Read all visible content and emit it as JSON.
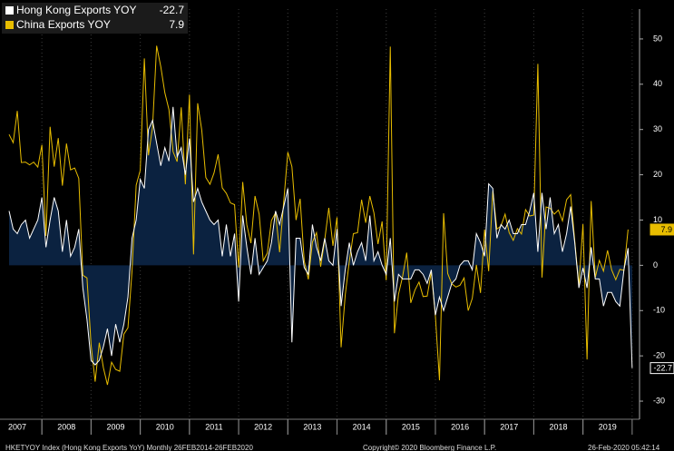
{
  "chart_data": {
    "type": "line",
    "x": [
      2007.333,
      2007.417,
      2007.5,
      2007.583,
      2007.667,
      2007.75,
      2007.833,
      2007.917,
      2008,
      2008.083,
      2008.167,
      2008.25,
      2008.333,
      2008.417,
      2008.5,
      2008.583,
      2008.667,
      2008.75,
      2008.833,
      2008.917,
      2009,
      2009.083,
      2009.167,
      2009.25,
      2009.333,
      2009.417,
      2009.5,
      2009.583,
      2009.667,
      2009.75,
      2009.833,
      2009.917,
      2010,
      2010.083,
      2010.167,
      2010.25,
      2010.333,
      2010.417,
      2010.5,
      2010.583,
      2010.667,
      2010.75,
      2010.833,
      2010.917,
      2011,
      2011.083,
      2011.167,
      2011.25,
      2011.333,
      2011.417,
      2011.5,
      2011.583,
      2011.667,
      2011.75,
      2011.833,
      2011.917,
      2012,
      2012.083,
      2012.167,
      2012.25,
      2012.333,
      2012.417,
      2012.5,
      2012.583,
      2012.667,
      2012.75,
      2012.833,
      2012.917,
      2013,
      2013.083,
      2013.167,
      2013.25,
      2013.333,
      2013.417,
      2013.5,
      2013.583,
      2013.667,
      2013.75,
      2013.833,
      2013.917,
      2014,
      2014.083,
      2014.167,
      2014.25,
      2014.333,
      2014.417,
      2014.5,
      2014.583,
      2014.667,
      2014.75,
      2014.833,
      2014.917,
      2015,
      2015.083,
      2015.167,
      2015.25,
      2015.333,
      2015.417,
      2015.5,
      2015.583,
      2015.667,
      2015.75,
      2015.833,
      2015.917,
      2016,
      2016.083,
      2016.167,
      2016.25,
      2016.333,
      2016.417,
      2016.5,
      2016.583,
      2016.667,
      2016.75,
      2016.833,
      2016.917,
      2017,
      2017.083,
      2017.167,
      2017.25,
      2017.333,
      2017.417,
      2017.5,
      2017.583,
      2017.667,
      2017.75,
      2017.833,
      2017.917,
      2018,
      2018.083,
      2018.167,
      2018.25,
      2018.333,
      2018.417,
      2018.5,
      2018.583,
      2018.667,
      2018.75,
      2018.833,
      2018.917,
      2019,
      2019.083,
      2019.167,
      2019.25,
      2019.333,
      2019.417,
      2019.5,
      2019.583,
      2019.667,
      2019.75,
      2019.833,
      2019.917,
      2020
    ],
    "series": [
      {
        "name": "Hong Kong Exports YOY",
        "last_label": "-22.7",
        "color": "#ffffff",
        "fill": "#0b2240",
        "values": [
          12,
          8,
          7,
          9,
          10,
          6,
          8,
          10,
          15,
          4,
          10,
          15,
          12,
          3,
          10,
          2,
          4,
          8,
          -5,
          -12,
          -21,
          -22,
          -21,
          -18,
          -14,
          -20,
          -13,
          -17,
          -13,
          -7,
          6,
          10,
          19,
          17,
          30,
          32,
          27,
          22,
          26,
          23,
          35,
          24,
          26,
          20,
          28,
          14,
          17,
          14,
          12,
          10,
          9,
          10,
          2,
          9,
          2,
          7,
          -8,
          11,
          4,
          -2,
          6,
          -2,
          -0.5,
          1,
          5,
          12,
          9,
          13,
          17,
          -17,
          6,
          6,
          -0.5,
          -2,
          9,
          4,
          1,
          6,
          1,
          0,
          8,
          -9,
          -1,
          5,
          0,
          3,
          5,
          1,
          11,
          1,
          3,
          0,
          -2,
          6,
          -8,
          -2,
          -3,
          -3,
          -3,
          -1,
          -1,
          -2,
          -4,
          -1,
          -11,
          -7,
          -10,
          -7,
          -4,
          -3,
          0,
          1,
          1,
          -1,
          7,
          5,
          2,
          18,
          17,
          6,
          9,
          8,
          10,
          7,
          7,
          9,
          9,
          12,
          16,
          3,
          16,
          8,
          15,
          7,
          9,
          3,
          7,
          13,
          5,
          -5,
          -0.6,
          -5,
          4,
          -3,
          -3,
          -9,
          -6,
          -6,
          -8,
          -9,
          -1,
          3.8,
          -22.7
        ]
      },
      {
        "name": "China Exports YOY",
        "last_label": "7.9",
        "color": "#e8bd00",
        "values": [
          28.9,
          27.1,
          34.1,
          22.7,
          22.8,
          22.2,
          22.8,
          21.7,
          26.6,
          6.5,
          30.6,
          21.8,
          28.1,
          17.6,
          26.9,
          21.1,
          21.5,
          19.2,
          -2.2,
          -2.8,
          -17.5,
          -25.7,
          -17.1,
          -22.6,
          -26.4,
          -21.4,
          -23,
          -23.4,
          -15.2,
          -13.8,
          -1.2,
          17.7,
          21,
          45.7,
          24.3,
          30.5,
          48.5,
          43.9,
          38.1,
          34.4,
          25.1,
          22.9,
          34.9,
          17.9,
          37.7,
          2.4,
          35.8,
          29.9,
          19.4,
          17.9,
          20.4,
          24.5,
          17.1,
          15.9,
          13.8,
          13.4,
          -0.5,
          18.4,
          8.9,
          4.9,
          15.3,
          11.3,
          1,
          2.7,
          9.9,
          11.6,
          2.9,
          14.1,
          25,
          21.8,
          10,
          14.7,
          1,
          -3.1,
          5.1,
          7.2,
          -0.3,
          5.6,
          12.7,
          4.3,
          10.6,
          -18.1,
          -6.6,
          0.9,
          7,
          7.2,
          14.5,
          9.4,
          15.3,
          11.6,
          4.7,
          9.7,
          -3.3,
          48.3,
          -15,
          -6.4,
          -2.5,
          2.8,
          -8.3,
          -5.5,
          -3.7,
          -6.9,
          -6.8,
          -1.4,
          -11.2,
          -25.4,
          11.5,
          -1.8,
          -4.1,
          -4.8,
          -4.4,
          -2.8,
          -10,
          -7.3,
          0.1,
          -6.1,
          7.9,
          -1.3,
          16.4,
          8,
          8.7,
          11.3,
          7.2,
          5.5,
          8.1,
          6.9,
          12.3,
          10.9,
          11.1,
          44.5,
          -2.7,
          12.9,
          12.6,
          11.3,
          12.2,
          9.8,
          14.5,
          15.6,
          5.4,
          -4.4,
          9.1,
          -20.8,
          14.2,
          -2.7,
          1.1,
          -1.3,
          3.3,
          -1,
          -3.2,
          -0.9,
          -1.1,
          7.9,
          null
        ]
      }
    ],
    "xlim": [
      2007.333,
      2020.15
    ],
    "xticks": [
      {
        "value": 2007.5,
        "label": "2007"
      },
      {
        "value": 2008.5,
        "label": "2008"
      },
      {
        "value": 2009.5,
        "label": "2009"
      },
      {
        "value": 2010.5,
        "label": "2010"
      },
      {
        "value": 2011.5,
        "label": "2011"
      },
      {
        "value": 2012.5,
        "label": "2012"
      },
      {
        "value": 2013.5,
        "label": "2013"
      },
      {
        "value": 2014.5,
        "label": "2014"
      },
      {
        "value": 2015.5,
        "label": "2015"
      },
      {
        "value": 2016.5,
        "label": "2016"
      },
      {
        "value": 2017.5,
        "label": "2017"
      },
      {
        "value": 2018.5,
        "label": "2018"
      },
      {
        "value": 2019.5,
        "label": "2019"
      }
    ],
    "ylim": [
      -34,
      56.6
    ],
    "yticks": [
      -30,
      -20,
      -10,
      0,
      10,
      20,
      30,
      40,
      50
    ],
    "grid": false,
    "legend": "upper left",
    "footer": [
      "HKETYOY Index (Hong Kong Exports YoY) Monthly 26FEB2014-26FEB2020",
      "Copyright© 2020 Bloomberg Finance L.P.",
      "26-Feb-2020 05:42:14"
    ]
  }
}
